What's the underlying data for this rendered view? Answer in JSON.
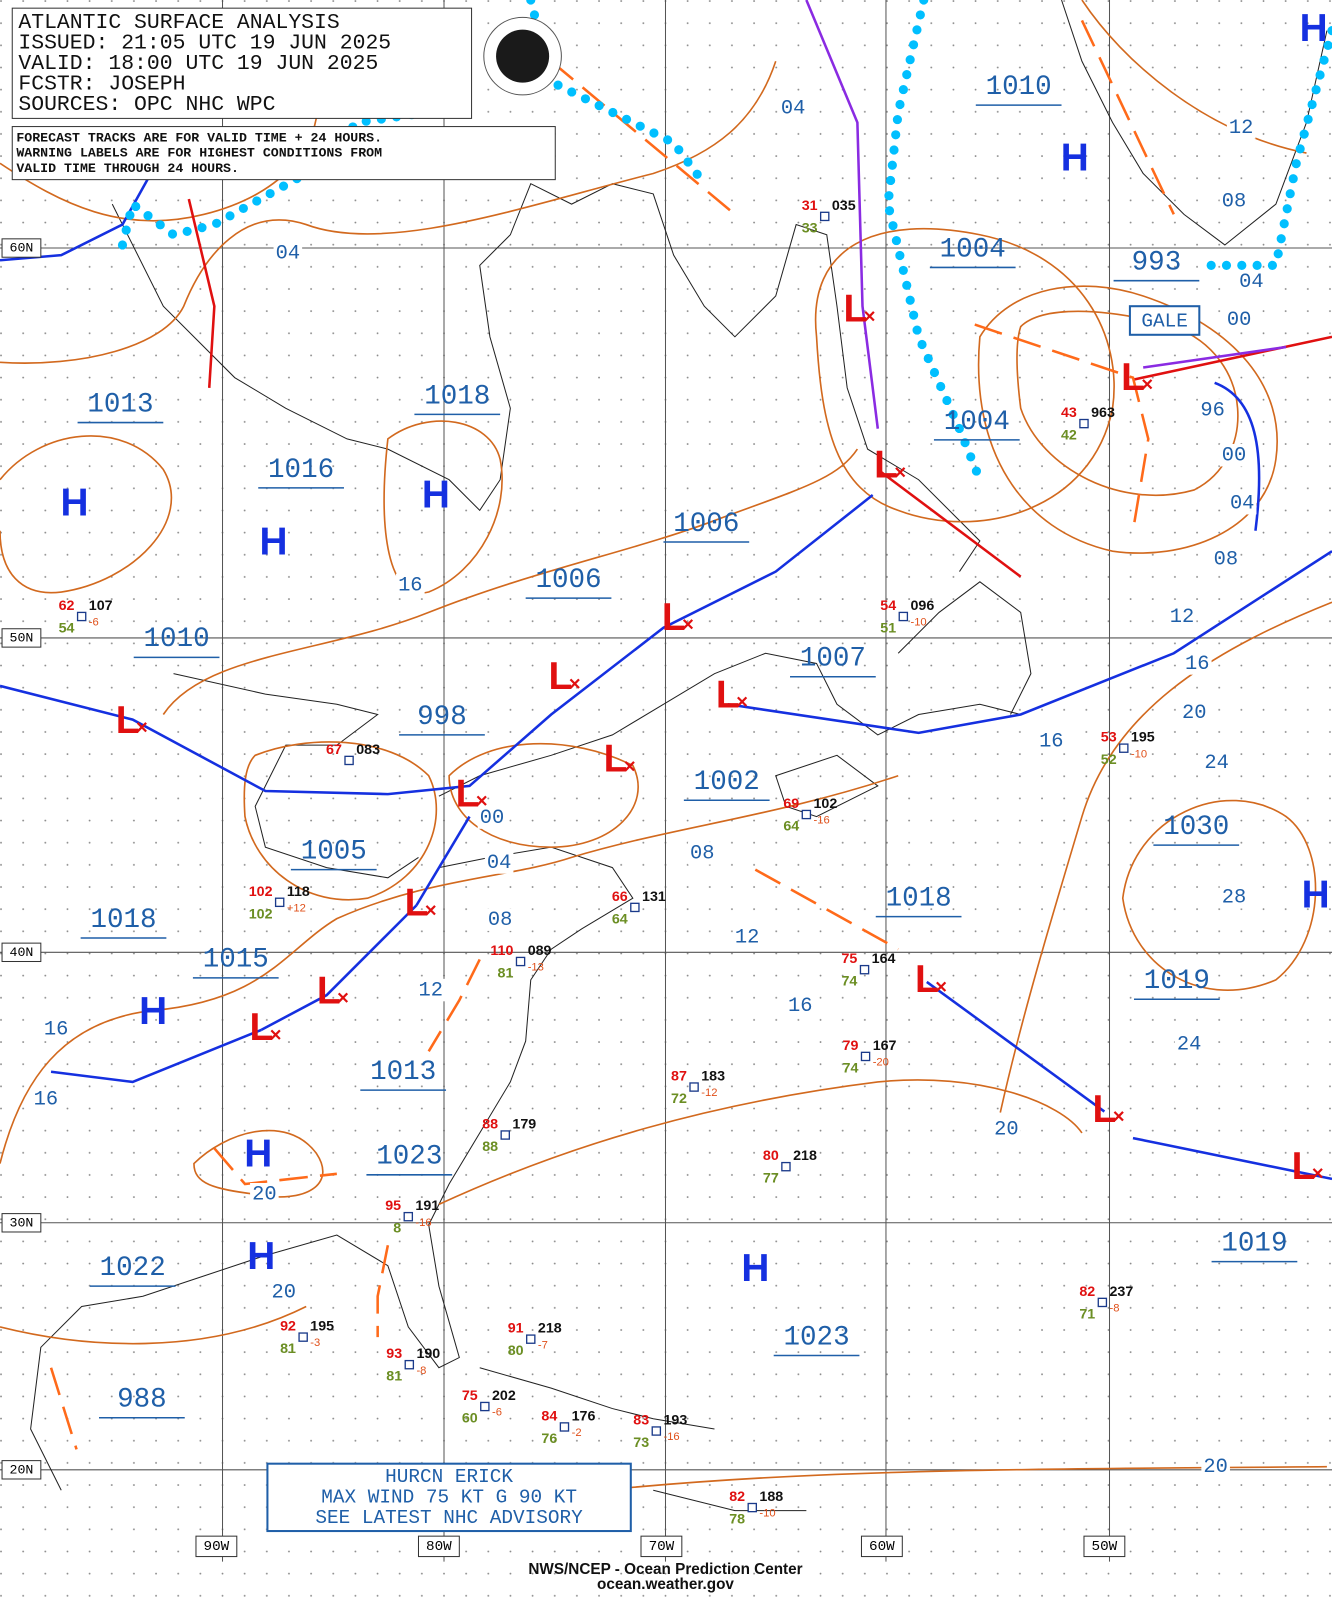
{
  "header": {
    "lines": [
      "ATLANTIC SURFACE ANALYSIS",
      "ISSUED: 21:05 UTC 19 JUN 2025",
      "VALID:  18:00 UTC 19 JUN 2025",
      "FCSTR:  JOSEPH",
      "SOURCES: OPC NHC WPC"
    ]
  },
  "notice": {
    "lines": [
      "FORECAST TRACKS ARE FOR VALID TIME + 24 HOURS.",
      "WARNING LABELS ARE FOR HIGHEST CONDITIONS FROM",
      "VALID TIME THROUGH 24 HOURS."
    ]
  },
  "centers": [
    "1010",
    "1004",
    "993",
    "1004",
    "1013",
    "1018",
    "1016",
    "1006",
    "1006",
    "1010",
    "1007",
    "998",
    "1002",
    "1030",
    "1005",
    "1018",
    "1018",
    "1015",
    "1019",
    "1013",
    "1023",
    "1019",
    "1022",
    "1023",
    "988"
  ],
  "isobar_labels": [
    "04",
    "12",
    "08",
    "04",
    "04",
    "00",
    "96",
    "00",
    "04",
    "08",
    "16",
    "12",
    "16",
    "20",
    "16",
    "24",
    "00",
    "04",
    "08",
    "08",
    "12",
    "28",
    "12",
    "16",
    "16",
    "24",
    "16",
    "20",
    "20",
    "20",
    "20"
  ],
  "high_symbol": "H",
  "low_symbol": "L",
  "latitudes": [
    "60N",
    "50N",
    "40N",
    "30N",
    "20N"
  ],
  "longitudes": [
    "90W",
    "80W",
    "70W",
    "60W",
    "50W"
  ],
  "gale": "GALE",
  "stations": [
    {
      "temp": "62",
      "pressure": "107",
      "tendency": "-6",
      "dewpoint": "54"
    },
    {
      "temp": "31",
      "pressure": "035",
      "dewpoint": "33"
    },
    {
      "temp": "54",
      "pressure": "096",
      "tendency": "-10",
      "dewpoint": "51"
    },
    {
      "temp": "43",
      "pressure": "963",
      "dewpoint": "42"
    },
    {
      "temp": "67",
      "pressure": "083"
    },
    {
      "temp": "102",
      "pressure": "118",
      "tendency": "+12",
      "dewpoint": "102"
    },
    {
      "temp": "66",
      "pressure": "131",
      "dewpoint": "64"
    },
    {
      "temp": "110",
      "pressure": "089",
      "tendency": "-13",
      "dewpoint": "81"
    },
    {
      "temp": "69",
      "pressure": "102",
      "tendency": "-16",
      "dewpoint": "64"
    },
    {
      "temp": "75",
      "pressure": "164",
      "dewpoint": "74"
    },
    {
      "temp": "79",
      "pressure": "167",
      "tendency": "-20",
      "dewpoint": "74"
    },
    {
      "temp": "87",
      "pressure": "183",
      "tendency": "-12",
      "dewpoint": "72"
    },
    {
      "temp": "88",
      "pressure": "179",
      "dewpoint": "88"
    },
    {
      "temp": "80",
      "pressure": "218",
      "dewpoint": "77"
    },
    {
      "temp": "95",
      "pressure": "191",
      "tendency": "-16",
      "dewpoint": "8"
    },
    {
      "temp": "92",
      "pressure": "195",
      "tendency": "-3",
      "dewpoint": "81"
    },
    {
      "temp": "93",
      "pressure": "190",
      "tendency": "-8",
      "dewpoint": "81"
    },
    {
      "temp": "91",
      "pressure": "218",
      "tendency": "-7",
      "dewpoint": "80"
    },
    {
      "temp": "75",
      "pressure": "202",
      "tendency": "-6",
      "dewpoint": "60"
    },
    {
      "temp": "84",
      "pressure": "176",
      "tendency": "-2",
      "dewpoint": "76"
    },
    {
      "temp": "83",
      "pressure": "193",
      "tendency": "-16",
      "dewpoint": "73"
    },
    {
      "temp": "82",
      "pressure": "188",
      "tendency": "-10",
      "dewpoint": "78"
    },
    {
      "temp": "82",
      "pressure": "237",
      "tendency": "-8",
      "dewpoint": "71"
    },
    {
      "temp": "53",
      "pressure": "195",
      "tendency": "-10",
      "dewpoint": "52"
    }
  ],
  "hurricane": {
    "lines": [
      "HURCN ERICK",
      "MAX WIND 75 KT G 90 KT",
      "SEE LATEST NHC ADVISORY"
    ]
  },
  "footer": {
    "lines": [
      "NWS/NCEP - Ocean Prediction Center",
      "ocean.weather.gov"
    ]
  }
}
